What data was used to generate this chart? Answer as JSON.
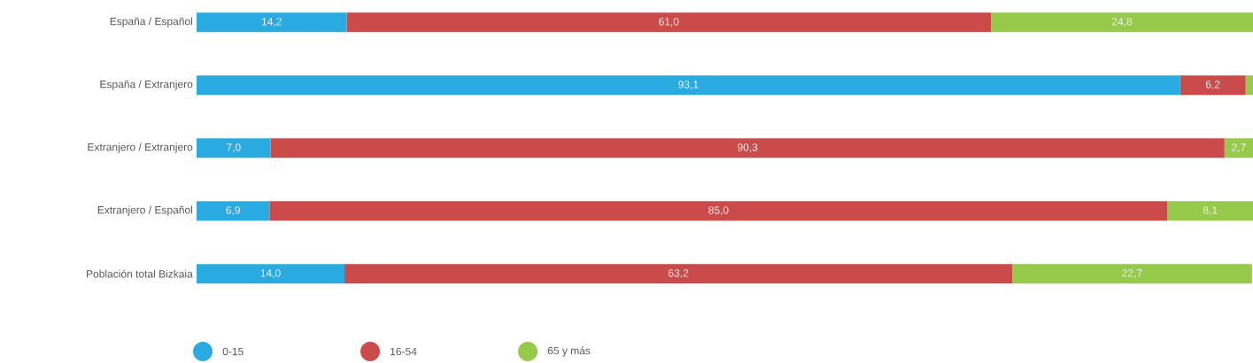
{
  "chart_data": {
    "type": "bar",
    "orientation": "horizontal",
    "stacked": true,
    "categories": [
      "España / Español",
      "España / Extranjero",
      "Extranjero / Extranjero",
      "Extranjero / Español",
      "Población total Bizkaia"
    ],
    "xlim": [
      0,
      100
    ],
    "tick_labels": "y",
    "legend": "bottom",
    "series": [
      {
        "name": "0-15",
        "color": "#29abe2",
        "values": [
          14.2,
          93.1,
          7.0,
          6.9,
          14.0
        ],
        "value_labels": [
          "14,2",
          "93,1",
          "7,0",
          "6,9",
          "14,0"
        ]
      },
      {
        "name": "16-54",
        "color": "#cb4a4a",
        "values": [
          61.0,
          6.2,
          90.3,
          85.0,
          63.2
        ],
        "value_labels": [
          "61,0",
          "6,2",
          "90,3",
          "85,0",
          "63,2"
        ]
      },
      {
        "name": "65 y más",
        "color": "#97c94a",
        "values": [
          24.8,
          0.7,
          2.7,
          8.1,
          22.7
        ],
        "value_labels": [
          "24,8",
          null,
          "2,7",
          "8,1",
          "22,7"
        ]
      }
    ]
  }
}
